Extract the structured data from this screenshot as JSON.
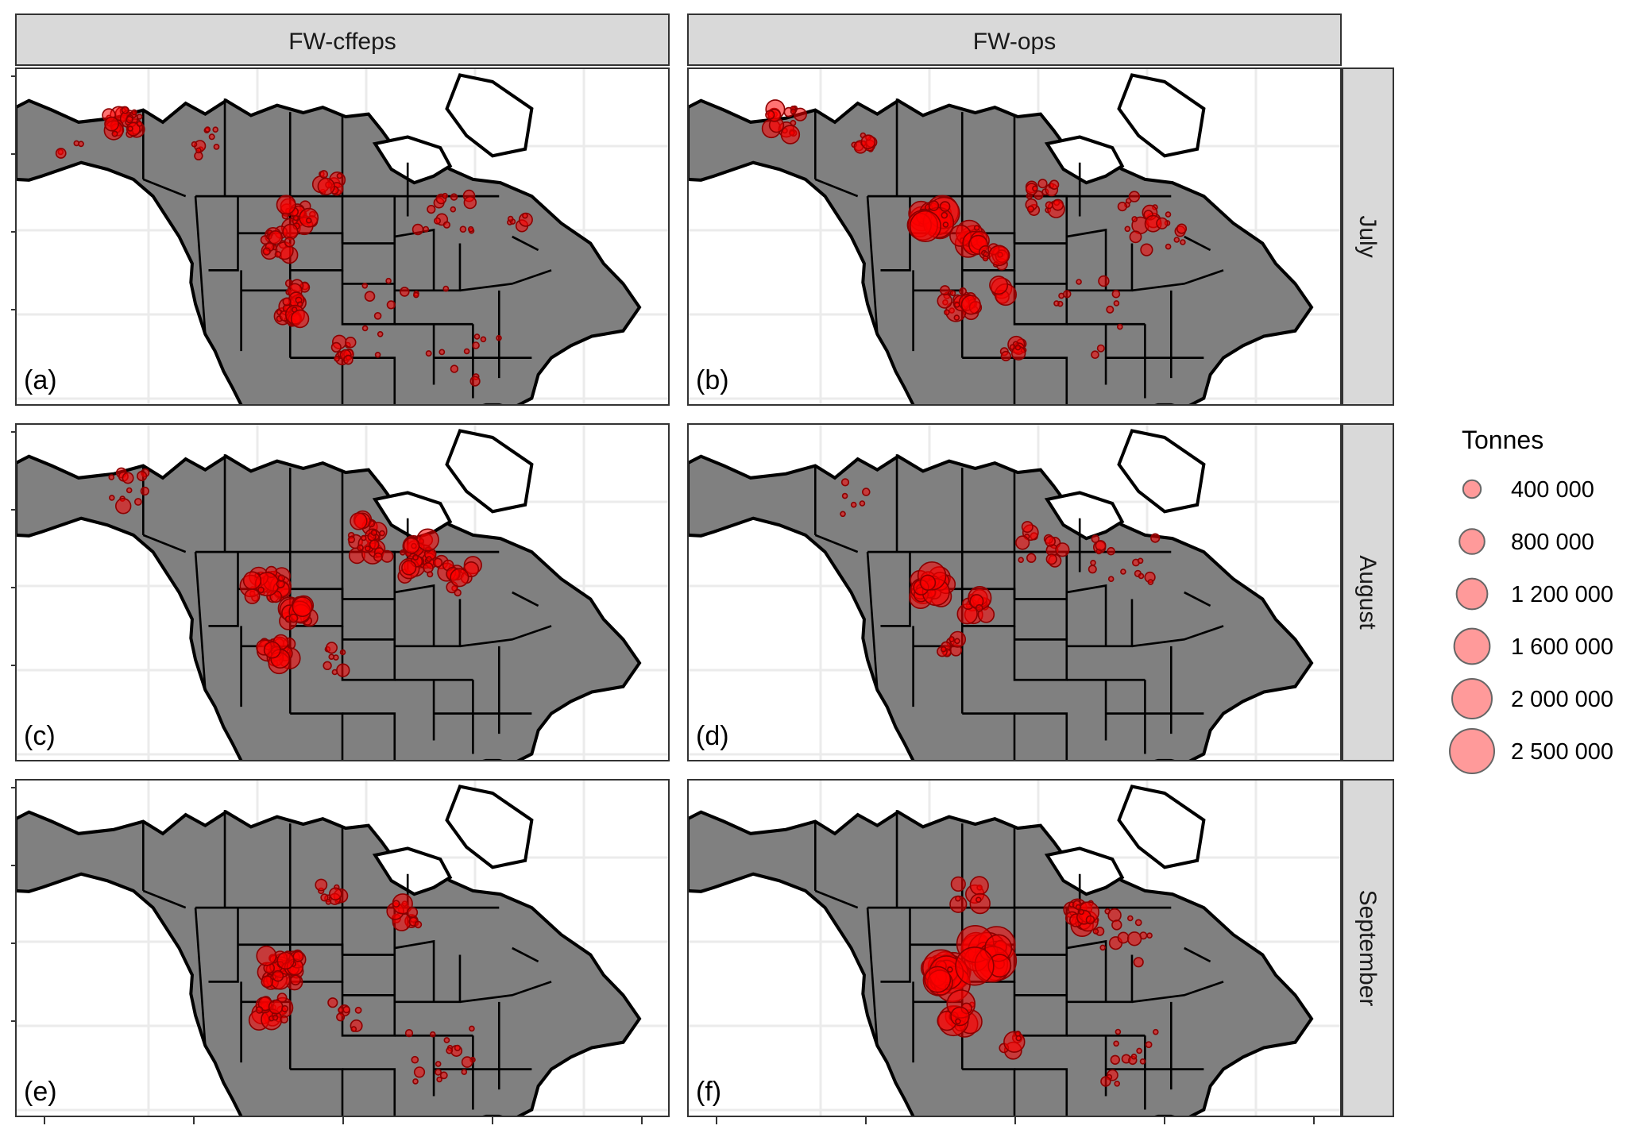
{
  "columns": [
    "FW-cffeps",
    "FW-ops"
  ],
  "rows": [
    "July",
    "August",
    "September"
  ],
  "panel_labels": [
    "(a)",
    "(b)",
    "(c)",
    "(d)",
    "(e)",
    "(f)"
  ],
  "colors": {
    "land": "#808080",
    "border": "#000000",
    "point_fill": "#ff0000",
    "point_stroke": "#8b0000",
    "strip_bg": "#d9d9d9",
    "grid": "#ebebeb",
    "legend_fill": "#ff9a9a"
  },
  "legend": {
    "title": "Tonnes",
    "items": [
      "400 000",
      "800 000",
      "1 200 000",
      "1 600 000",
      "2 000 000",
      "2 500 000"
    ],
    "values": [
      400000,
      800000,
      1200000,
      1600000,
      2000000,
      2500000
    ]
  },
  "panels": [
    {
      "id": "a",
      "column": "FW-cffeps",
      "row": "July",
      "label": "(a)",
      "clusters": [
        {
          "lon": -150,
          "lat": 67,
          "n": 30,
          "spread": 3,
          "max": 450000
        },
        {
          "lon": -160,
          "lat": 63,
          "n": 4,
          "spread": 2,
          "max": 200000
        },
        {
          "lon": -135,
          "lat": 64,
          "n": 10,
          "spread": 3,
          "max": 250000
        },
        {
          "lon": -112,
          "lat": 58,
          "n": 12,
          "spread": 2,
          "max": 350000
        },
        {
          "lon": -118,
          "lat": 53,
          "n": 22,
          "spread": 2.5,
          "max": 450000
        },
        {
          "lon": -122,
          "lat": 49,
          "n": 18,
          "spread": 2.5,
          "max": 450000
        },
        {
          "lon": -118,
          "lat": 42,
          "n": 10,
          "spread": 2,
          "max": 300000
        },
        {
          "lon": -120,
          "lat": 39,
          "n": 20,
          "spread": 2.5,
          "max": 450000
        },
        {
          "lon": -110,
          "lat": 33,
          "n": 12,
          "spread": 2,
          "max": 300000
        },
        {
          "lon": -92,
          "lat": 55,
          "n": 16,
          "spread": 6,
          "max": 250000
        },
        {
          "lon": -78,
          "lat": 52,
          "n": 6,
          "spread": 2,
          "max": 250000
        },
        {
          "lon": -98,
          "lat": 38,
          "n": 14,
          "spread": 8,
          "max": 150000
        },
        {
          "lon": -85,
          "lat": 32,
          "n": 8,
          "spread": 5,
          "max": 120000
        }
      ]
    },
    {
      "id": "b",
      "column": "FW-ops",
      "row": "July",
      "label": "(b)",
      "clusters": [
        {
          "lon": -152,
          "lat": 67,
          "n": 20,
          "spread": 3,
          "max": 450000
        },
        {
          "lon": -138,
          "lat": 64,
          "n": 10,
          "spread": 2,
          "max": 400000
        },
        {
          "lon": -125,
          "lat": 53,
          "n": 26,
          "spread": 2.5,
          "max": 1400000
        },
        {
          "lon": -118,
          "lat": 50,
          "n": 16,
          "spread": 2,
          "max": 900000
        },
        {
          "lon": -114,
          "lat": 47,
          "n": 12,
          "spread": 2,
          "max": 700000
        },
        {
          "lon": -120,
          "lat": 40,
          "n": 22,
          "spread": 3,
          "max": 500000
        },
        {
          "lon": -112,
          "lat": 42,
          "n": 6,
          "spread": 1.5,
          "max": 600000
        },
        {
          "lon": -110,
          "lat": 33,
          "n": 10,
          "spread": 2,
          "max": 400000
        },
        {
          "lon": -105,
          "lat": 56,
          "n": 18,
          "spread": 3,
          "max": 400000
        },
        {
          "lon": -85,
          "lat": 52,
          "n": 22,
          "spread": 6,
          "max": 350000
        },
        {
          "lon": -95,
          "lat": 38,
          "n": 12,
          "spread": 8,
          "max": 150000
        }
      ]
    },
    {
      "id": "c",
      "column": "FW-cffeps",
      "row": "August",
      "label": "(c)",
      "clusters": [
        {
          "lon": -150,
          "lat": 65,
          "n": 12,
          "spread": 4,
          "max": 300000
        },
        {
          "lon": -124,
          "lat": 51,
          "n": 30,
          "spread": 3,
          "max": 700000
        },
        {
          "lon": -118,
          "lat": 47,
          "n": 18,
          "spread": 2,
          "max": 700000
        },
        {
          "lon": -122,
          "lat": 41,
          "n": 20,
          "spread": 2.5,
          "max": 600000
        },
        {
          "lon": -105,
          "lat": 58,
          "n": 30,
          "spread": 4,
          "max": 600000
        },
        {
          "lon": -95,
          "lat": 55,
          "n": 30,
          "spread": 4,
          "max": 600000
        },
        {
          "lon": -88,
          "lat": 52,
          "n": 16,
          "spread": 3,
          "max": 450000
        },
        {
          "lon": -110,
          "lat": 40,
          "n": 8,
          "spread": 3,
          "max": 250000
        }
      ]
    },
    {
      "id": "d",
      "column": "FW-ops",
      "row": "August",
      "label": "(d)",
      "clusters": [
        {
          "lon": -125,
          "lat": 51,
          "n": 22,
          "spread": 2.5,
          "max": 1100000
        },
        {
          "lon": -117,
          "lat": 48,
          "n": 14,
          "spread": 2,
          "max": 700000
        },
        {
          "lon": -122,
          "lat": 42,
          "n": 10,
          "spread": 2,
          "max": 400000
        },
        {
          "lon": -105,
          "lat": 57,
          "n": 14,
          "spread": 4,
          "max": 300000
        },
        {
          "lon": -90,
          "lat": 54,
          "n": 16,
          "spread": 6,
          "max": 250000
        },
        {
          "lon": -140,
          "lat": 64,
          "n": 6,
          "spread": 4,
          "max": 150000
        }
      ]
    },
    {
      "id": "e",
      "column": "FW-cffeps",
      "row": "September",
      "label": "(e)",
      "clusters": [
        {
          "lon": -121,
          "lat": 47,
          "n": 40,
          "spread": 3,
          "max": 600000
        },
        {
          "lon": -123,
          "lat": 41,
          "n": 24,
          "spread": 2.5,
          "max": 600000
        },
        {
          "lon": -112,
          "lat": 58,
          "n": 10,
          "spread": 2,
          "max": 300000
        },
        {
          "lon": -98,
          "lat": 55,
          "n": 14,
          "spread": 2.5,
          "max": 500000
        },
        {
          "lon": -92,
          "lat": 34,
          "n": 18,
          "spread": 6,
          "max": 150000
        },
        {
          "lon": -110,
          "lat": 40,
          "n": 8,
          "spread": 3,
          "max": 300000
        }
      ]
    },
    {
      "id": "f",
      "column": "FW-ops",
      "row": "September",
      "label": "(f)",
      "clusters": [
        {
          "lon": -123,
          "lat": 46,
          "n": 30,
          "spread": 2.5,
          "max": 2000000
        },
        {
          "lon": -115,
          "lat": 49,
          "n": 24,
          "spread": 2.5,
          "max": 2200000
        },
        {
          "lon": -120,
          "lat": 40,
          "n": 14,
          "spread": 2.5,
          "max": 1300000
        },
        {
          "lon": -97,
          "lat": 55,
          "n": 18,
          "spread": 2.5,
          "max": 800000
        },
        {
          "lon": -118,
          "lat": 58,
          "n": 8,
          "spread": 3,
          "max": 500000
        },
        {
          "lon": -90,
          "lat": 52,
          "n": 14,
          "spread": 6,
          "max": 250000
        },
        {
          "lon": -90,
          "lat": 34,
          "n": 14,
          "spread": 6,
          "max": 150000
        },
        {
          "lon": -110,
          "lat": 36,
          "n": 6,
          "spread": 2,
          "max": 600000
        }
      ]
    }
  ]
}
